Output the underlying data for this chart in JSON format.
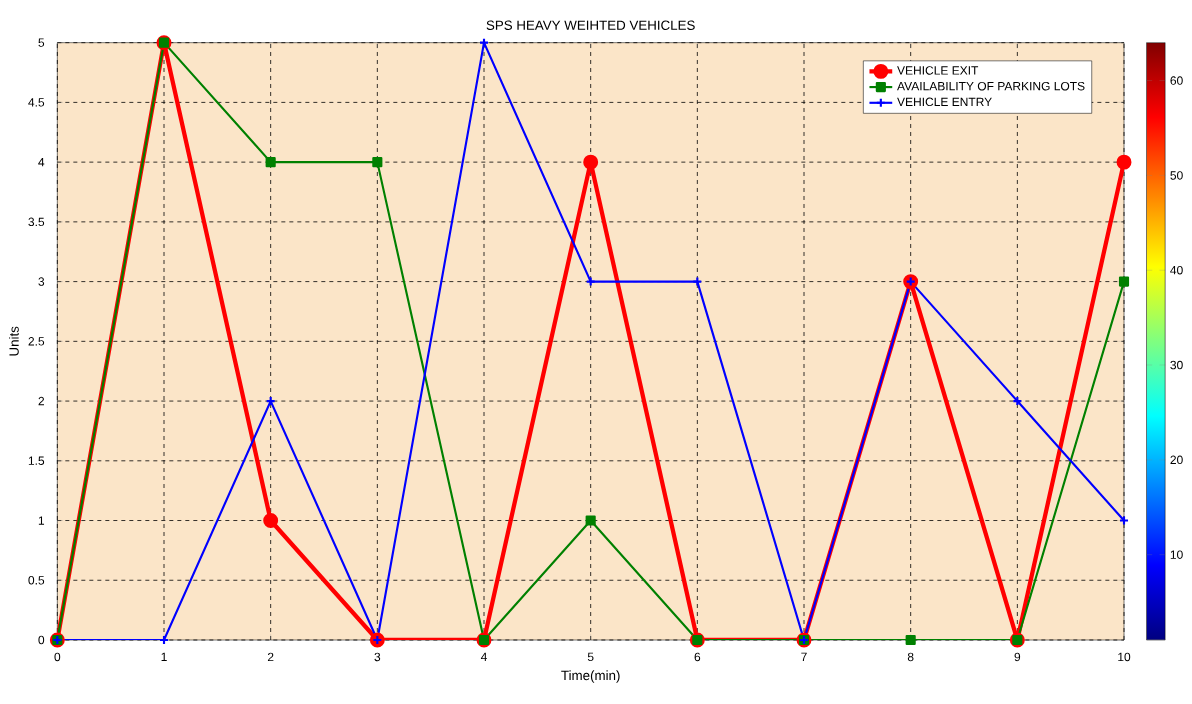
{
  "chart_data": {
    "type": "line",
    "title": "SPS HEAVY WEIHTED VEHICLES",
    "xlabel": "Time(min)",
    "ylabel": "Units",
    "x": [
      0,
      1,
      2,
      3,
      4,
      5,
      6,
      7,
      8,
      9,
      10
    ],
    "series": [
      {
        "name": "VEHICLE EXIT",
        "color": "#ff0000",
        "marker": "circle",
        "values": [
          0,
          5,
          1,
          0,
          0,
          4,
          0,
          0,
          3,
          0,
          4
        ]
      },
      {
        "name": "AVAILABILITY OF PARKING LOTS",
        "color": "#008000",
        "marker": "square",
        "values": [
          0,
          5,
          4,
          4,
          0,
          1,
          0,
          0,
          0,
          0,
          3
        ]
      },
      {
        "name": "VEHICLE ENTRY",
        "color": "#0000ff",
        "marker": "cross",
        "values": [
          0,
          0,
          2,
          0,
          5,
          3,
          3,
          0,
          3,
          2,
          1
        ]
      }
    ],
    "xlim": [
      0,
      10
    ],
    "xticks": [
      0,
      1,
      2,
      3,
      4,
      5,
      6,
      7,
      8,
      9,
      10
    ],
    "ylim": [
      0,
      5
    ],
    "yticks": [
      0,
      0.5,
      1,
      1.5,
      2,
      2.5,
      3,
      3.5,
      4,
      4.5,
      5
    ],
    "clim": [
      1,
      64
    ],
    "cticks": [
      10,
      20,
      30,
      40,
      50,
      60
    ],
    "grid": true,
    "legend": "top right",
    "line_style": "solid"
  }
}
